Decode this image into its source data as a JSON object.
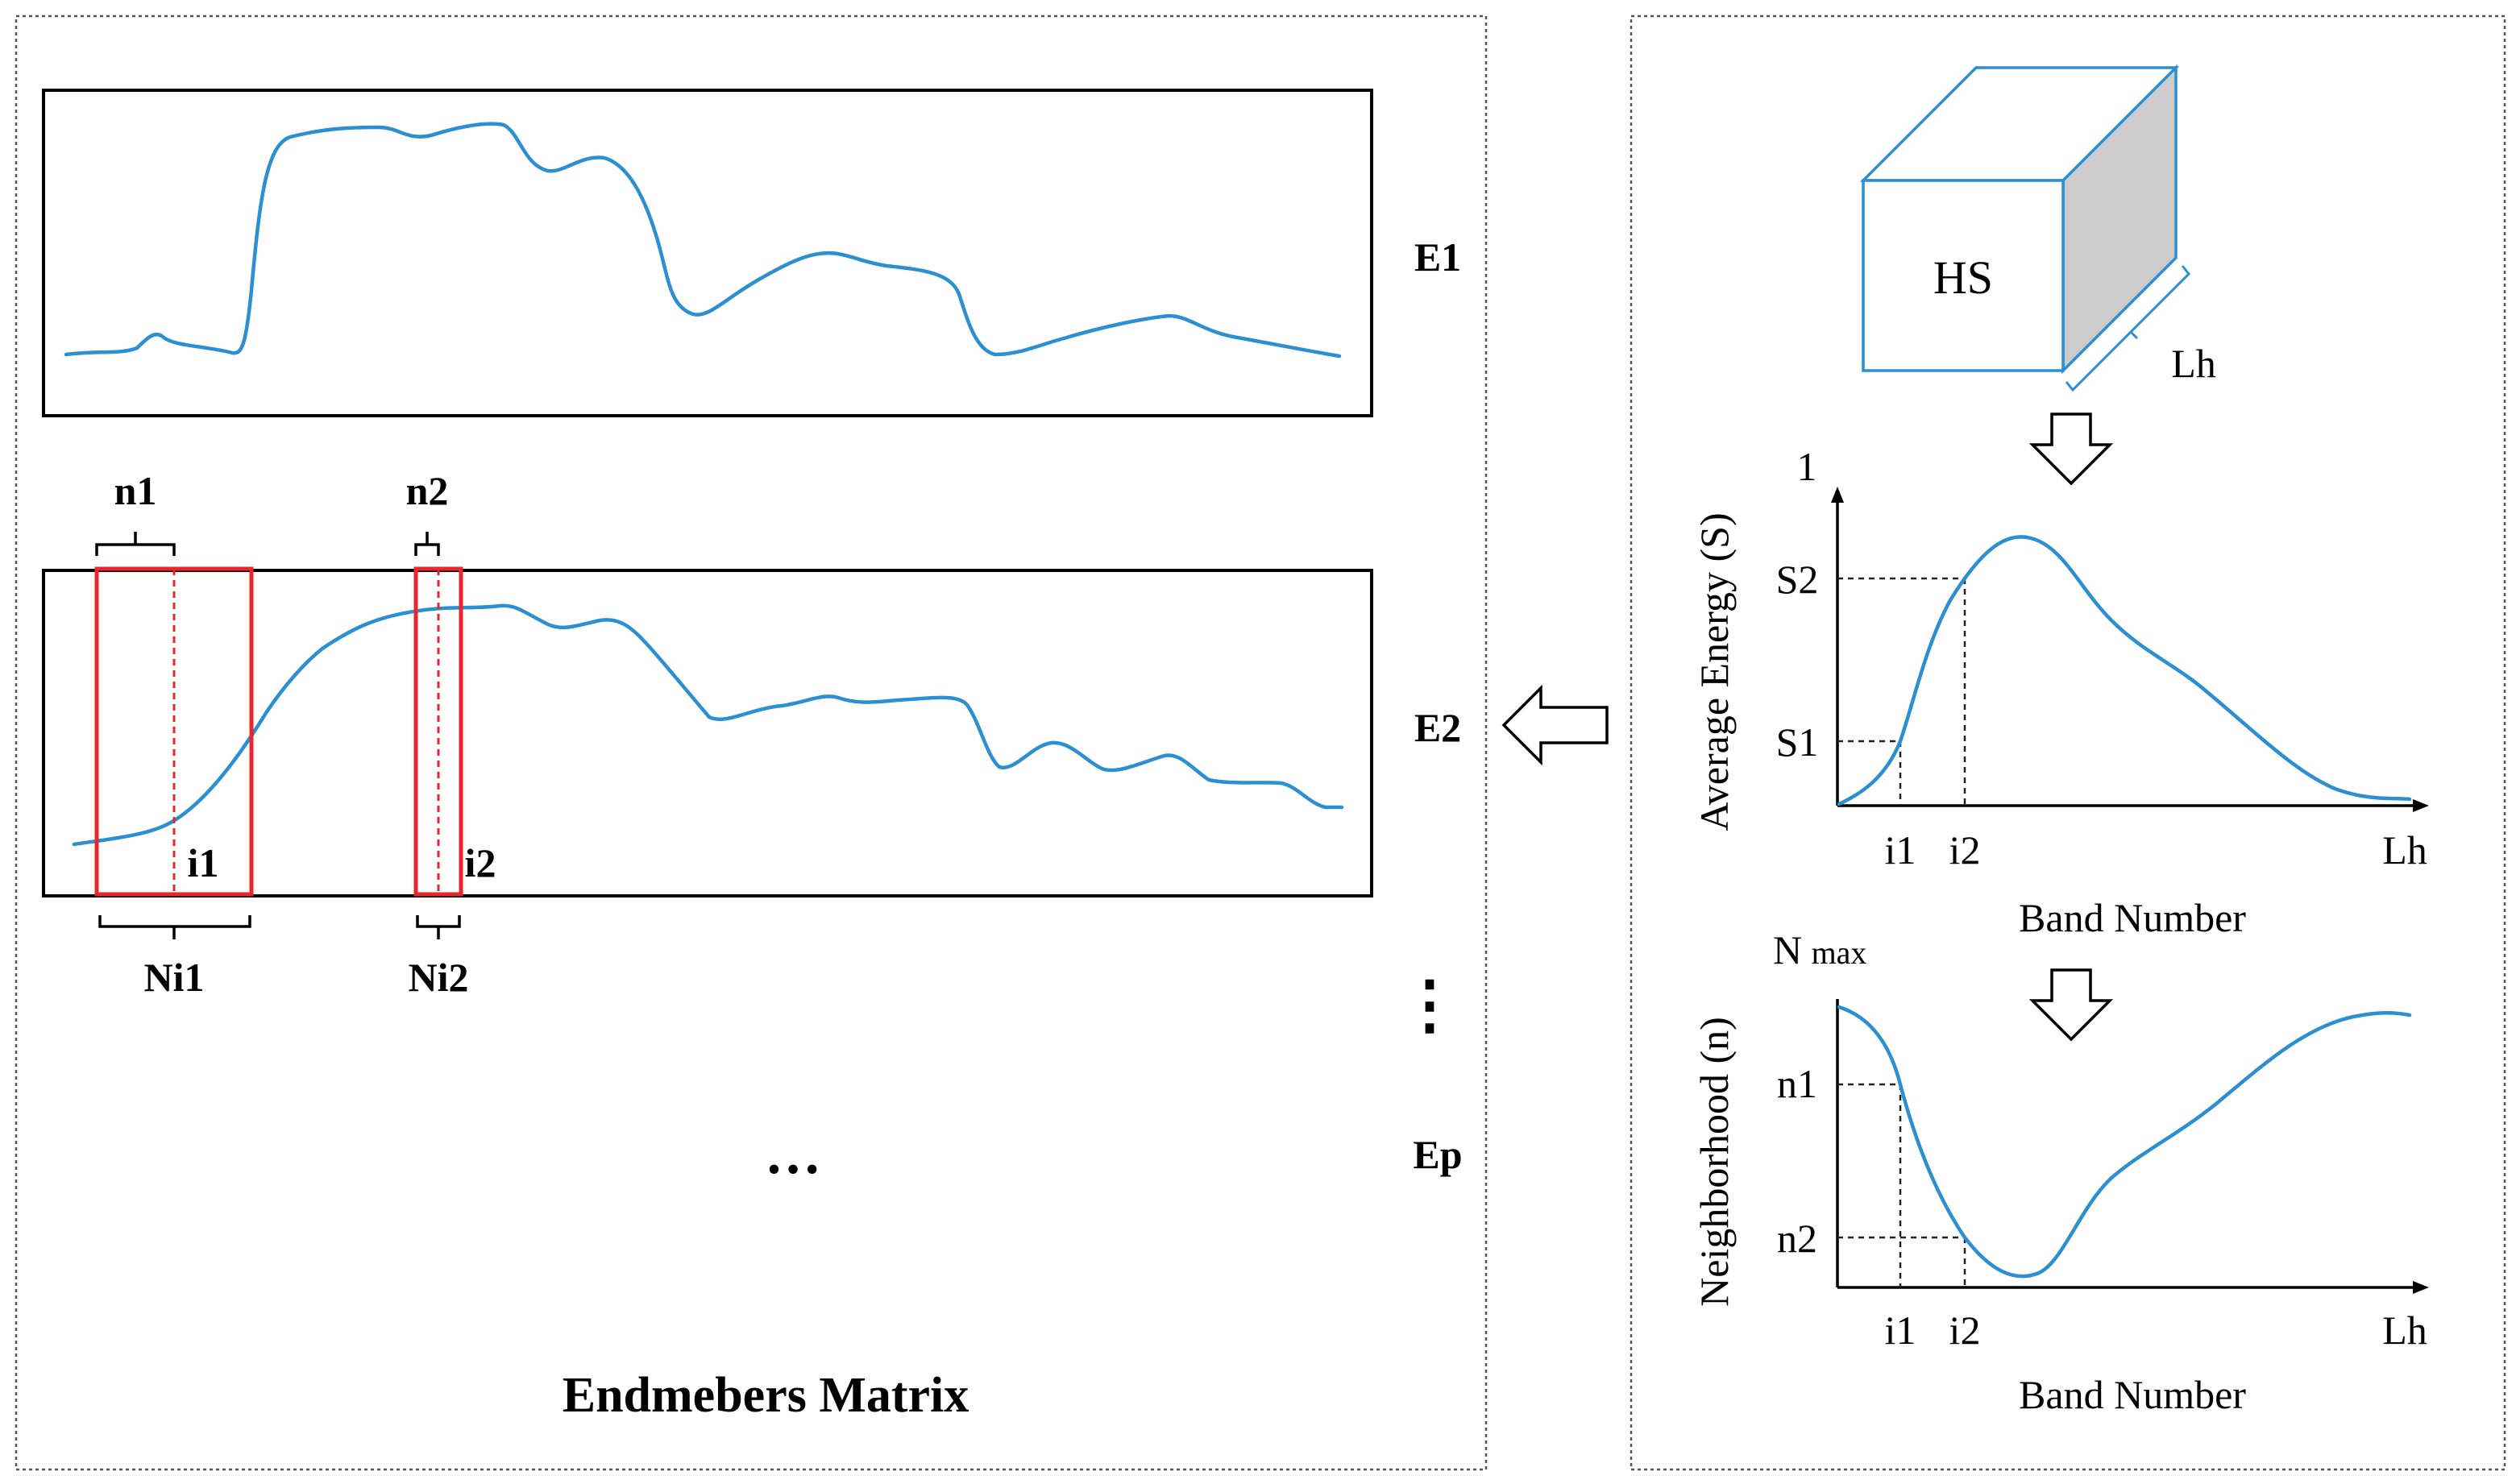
{
  "colors": {
    "spectrum": "#2b8fd1",
    "window": "#e8262c",
    "cube_side": "#cccccc"
  },
  "matrix": {
    "title": "Endmebers Matrix",
    "e1_label": "E1",
    "e2_label": "E2",
    "ep_label": "Ep",
    "vertical_ellipsis": "⋮",
    "horizontal_ellipsis": "…",
    "n1_label": "n1",
    "n2_label": "n2",
    "i1_label": "i1",
    "i2_label": "i2",
    "ni1_label": "Ni1",
    "ni2_label": "Ni2"
  },
  "cube": {
    "label": "HS",
    "dimension_label": "Lh"
  },
  "energy_plot": {
    "ylabel": "Average Energy (S)",
    "xlabel": "Band Number",
    "ymax_label": "1",
    "s2_label": "S2",
    "s1_label": "S1",
    "x_i1": "i1",
    "x_i2": "i2",
    "x_end": "Lh"
  },
  "neighborhood_plot": {
    "ylabel": "Neighborhood (n)",
    "xlabel": "Band Number",
    "ymax_label_main": "N",
    "ymax_label_sub": "max",
    "n1_label": "n1",
    "n2_label": "n2",
    "x_i1": "i1",
    "x_i2": "i2",
    "x_end": "Lh"
  }
}
